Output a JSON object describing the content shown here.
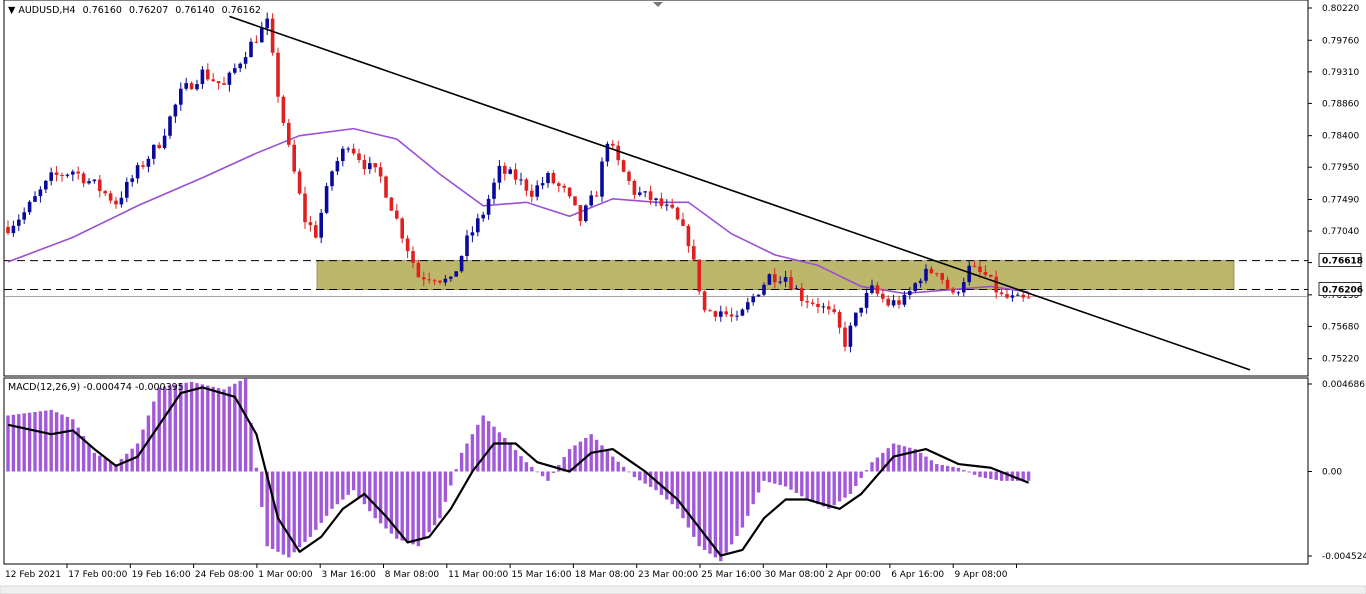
{
  "window": {
    "symbol": "AUDUSD,H4",
    "ohlc": [
      "0.76160",
      "0.76207",
      "0.76140",
      "0.76162"
    ]
  },
  "colors": {
    "bull": "#0a0a9a",
    "bear": "#e02020",
    "ma": "#9b4fd6",
    "zone": "#bdb76b",
    "trendline": "#000000",
    "macd_hist": "#a259d9",
    "macd_signal": "#000000"
  },
  "chart_data": [
    {
      "type": "candlestick",
      "ylim": [
        0.7503,
        0.8022
      ],
      "y_ticks": [
        "0.80220",
        "0.79760",
        "0.79310",
        "0.78860",
        "0.78400",
        "0.77950",
        "0.77490",
        "0.77040",
        "0.76590",
        "0.76130",
        "0.75680",
        "0.75220"
      ],
      "x_labels": [
        "12 Feb 2021",
        "17 Feb 00:00",
        "19 Feb 16:00",
        "24 Feb 08:00",
        "1 Mar 00:00",
        "3 Mar 16:00",
        "8 Mar 08:00",
        "11 Mar 00:00",
        "15 Mar 16:00",
        "18 Mar 08:00",
        "23 Mar 00:00",
        "25 Mar 16:00",
        "30 Mar 08:00",
        "2 Apr 00:00",
        "6 Apr 16:00",
        "9 Apr 08:00"
      ],
      "price_path": [
        [
          0,
          0.771
        ],
        [
          3,
          0.773
        ],
        [
          8,
          0.778
        ],
        [
          12,
          0.779
        ],
        [
          16,
          0.777
        ],
        [
          20,
          0.7745
        ],
        [
          24,
          0.779
        ],
        [
          28,
          0.783
        ],
        [
          32,
          0.79
        ],
        [
          36,
          0.793
        ],
        [
          40,
          0.791
        ],
        [
          44,
          0.796
        ],
        [
          48,
          0.8
        ],
        [
          50,
          0.79
        ],
        [
          52,
          0.782
        ],
        [
          55,
          0.772
        ],
        [
          57,
          0.77
        ],
        [
          60,
          0.779
        ],
        [
          63,
          0.783
        ],
        [
          66,
          0.78
        ],
        [
          69,
          0.778
        ],
        [
          72,
          0.772
        ],
        [
          76,
          0.764
        ],
        [
          79,
          0.764
        ],
        [
          82,
          0.763
        ],
        [
          85,
          0.769
        ],
        [
          88,
          0.773
        ],
        [
          91,
          0.779
        ],
        [
          94,
          0.778
        ],
        [
          97,
          0.776
        ],
        [
          100,
          0.778
        ],
        [
          103,
          0.776
        ],
        [
          106,
          0.772
        ],
        [
          109,
          0.776
        ],
        [
          111,
          0.7835
        ],
        [
          113,
          0.78
        ],
        [
          116,
          0.776
        ],
        [
          119,
          0.775
        ],
        [
          121,
          0.774
        ],
        [
          123,
          0.773
        ],
        [
          126,
          0.769
        ],
        [
          129,
          0.759
        ],
        [
          132,
          0.759
        ],
        [
          135,
          0.7575
        ],
        [
          138,
          0.761
        ],
        [
          141,
          0.764
        ],
        [
          144,
          0.764
        ],
        [
          147,
          0.761
        ],
        [
          150,
          0.76
        ],
        [
          153,
          0.758
        ],
        [
          155,
          0.7545
        ],
        [
          158,
          0.76
        ],
        [
          160,
          0.762
        ],
        [
          163,
          0.76
        ],
        [
          166,
          0.7605
        ],
        [
          169,
          0.764
        ],
        [
          172,
          0.765
        ],
        [
          175,
          0.761
        ],
        [
          178,
          0.765
        ],
        [
          181,
          0.764
        ],
        [
          184,
          0.761
        ],
        [
          187,
          0.7605
        ],
        [
          189,
          0.7605
        ]
      ],
      "moving_average": [
        [
          0,
          0.766
        ],
        [
          12,
          0.7695
        ],
        [
          24,
          0.774
        ],
        [
          36,
          0.778
        ],
        [
          46,
          0.7815
        ],
        [
          54,
          0.784
        ],
        [
          64,
          0.785
        ],
        [
          72,
          0.7835
        ],
        [
          80,
          0.7785
        ],
        [
          88,
          0.774
        ],
        [
          96,
          0.7745
        ],
        [
          104,
          0.7725
        ],
        [
          112,
          0.775
        ],
        [
          120,
          0.7745
        ],
        [
          126,
          0.7745
        ],
        [
          134,
          0.77
        ],
        [
          142,
          0.767
        ],
        [
          150,
          0.7655
        ],
        [
          158,
          0.7625
        ],
        [
          166,
          0.7615
        ],
        [
          174,
          0.762
        ],
        [
          182,
          0.7625
        ],
        [
          189,
          0.7617
        ]
      ],
      "zone": {
        "top": 0.76618,
        "bottom": 0.76206
      },
      "dashed_levels": [
        0.76618,
        0.76206
      ],
      "level_labels": [
        "0.76618",
        "0.76206"
      ],
      "trendline": [
        [
          41,
          0.801
        ],
        [
          230,
          0.7506
        ]
      ]
    },
    {
      "type": "bar",
      "label": "MACD(12,26,9) -0.000474 -0.000395",
      "ylim": [
        -0.004524,
        0.004686
      ],
      "y_ticks": [
        "0.004686",
        "0.00",
        "-0.004524"
      ],
      "histogram_path": [
        [
          0,
          0.003
        ],
        [
          8,
          0.0033
        ],
        [
          12,
          0.0028
        ],
        [
          16,
          0.001
        ],
        [
          20,
          0.0004
        ],
        [
          24,
          0.0015
        ],
        [
          28,
          0.0045
        ],
        [
          34,
          0.0048
        ],
        [
          40,
          0.0044
        ],
        [
          44,
          0.005
        ],
        [
          46,
          0.0002
        ],
        [
          48,
          -0.004
        ],
        [
          52,
          -0.0046
        ],
        [
          56,
          -0.0035
        ],
        [
          60,
          -0.002
        ],
        [
          64,
          -0.001
        ],
        [
          68,
          -0.0025
        ],
        [
          72,
          -0.0036
        ],
        [
          76,
          -0.004
        ],
        [
          80,
          -0.0025
        ],
        [
          84,
          0.001
        ],
        [
          88,
          0.003
        ],
        [
          92,
          0.0018
        ],
        [
          96,
          0.0005
        ],
        [
          100,
          -0.0005
        ],
        [
          104,
          0.0012
        ],
        [
          108,
          0.002
        ],
        [
          112,
          0.0008
        ],
        [
          116,
          -0.0003
        ],
        [
          120,
          -0.001
        ],
        [
          124,
          -0.002
        ],
        [
          128,
          -0.004
        ],
        [
          132,
          -0.0048
        ],
        [
          136,
          -0.003
        ],
        [
          140,
          -0.0005
        ],
        [
          144,
          -0.0008
        ],
        [
          148,
          -0.0015
        ],
        [
          152,
          -0.002
        ],
        [
          156,
          -0.0012
        ],
        [
          160,
          0.0005
        ],
        [
          164,
          0.0015
        ],
        [
          168,
          0.0012
        ],
        [
          172,
          0.0004
        ],
        [
          176,
          0.0002
        ],
        [
          180,
          -0.0003
        ],
        [
          184,
          -0.0005
        ],
        [
          189,
          -0.0005
        ]
      ],
      "signal_path": [
        [
          0,
          0.0025
        ],
        [
          8,
          0.002
        ],
        [
          12,
          0.0022
        ],
        [
          16,
          0.0012
        ],
        [
          20,
          0.0003
        ],
        [
          24,
          0.0008
        ],
        [
          28,
          0.0025
        ],
        [
          32,
          0.0042
        ],
        [
          36,
          0.0045
        ],
        [
          42,
          0.004
        ],
        [
          46,
          0.002
        ],
        [
          50,
          -0.0025
        ],
        [
          54,
          -0.0043
        ],
        [
          58,
          -0.0035
        ],
        [
          62,
          -0.002
        ],
        [
          66,
          -0.0012
        ],
        [
          70,
          -0.0024
        ],
        [
          74,
          -0.0038
        ],
        [
          78,
          -0.0035
        ],
        [
          82,
          -0.002
        ],
        [
          86,
          0.0
        ],
        [
          90,
          0.0015
        ],
        [
          94,
          0.0015
        ],
        [
          98,
          0.0005
        ],
        [
          104,
          0.0
        ],
        [
          108,
          0.001
        ],
        [
          112,
          0.0012
        ],
        [
          118,
          0.0
        ],
        [
          124,
          -0.0015
        ],
        [
          128,
          -0.003
        ],
        [
          132,
          -0.0045
        ],
        [
          136,
          -0.0042
        ],
        [
          140,
          -0.0025
        ],
        [
          144,
          -0.0015
        ],
        [
          148,
          -0.0015
        ],
        [
          154,
          -0.002
        ],
        [
          158,
          -0.0012
        ],
        [
          164,
          0.0008
        ],
        [
          170,
          0.0012
        ],
        [
          176,
          0.0004
        ],
        [
          182,
          0.0002
        ],
        [
          189,
          -0.0006
        ]
      ]
    }
  ]
}
